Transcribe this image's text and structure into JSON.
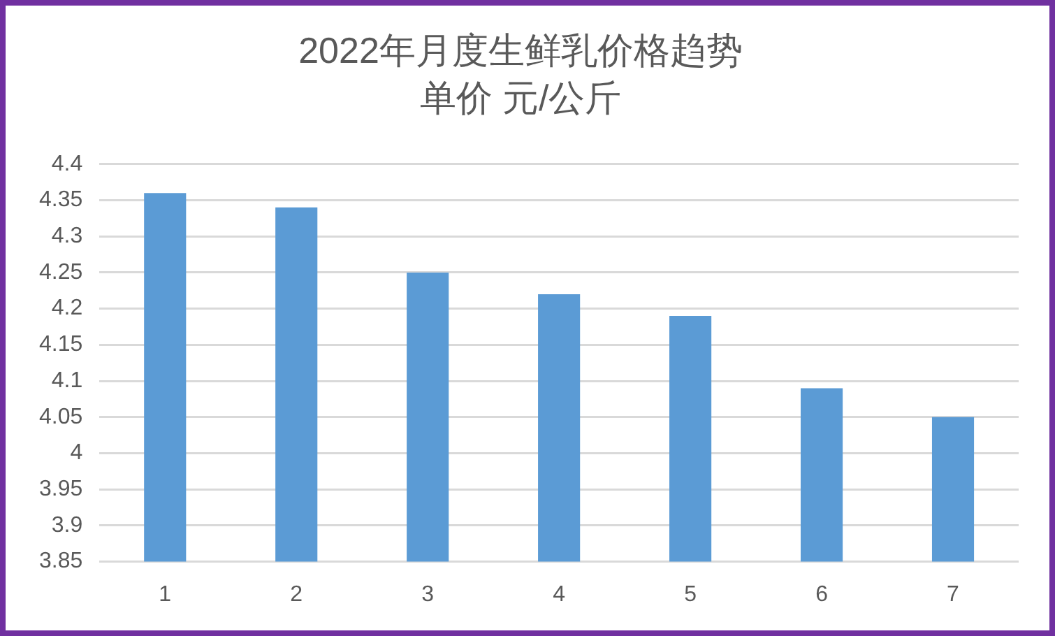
{
  "chart_data": {
    "type": "bar",
    "title": "2022年月度生鲜乳价格趋势",
    "subtitle": "单价 元/公斤",
    "categories": [
      "1",
      "2",
      "3",
      "4",
      "5",
      "6",
      "7"
    ],
    "values": [
      4.36,
      4.34,
      4.25,
      4.22,
      4.19,
      4.09,
      4.05
    ],
    "color": "#5b9bd5",
    "ylim": [
      3.85,
      4.4
    ],
    "yticks": [
      3.85,
      3.9,
      3.95,
      4,
      4.05,
      4.1,
      4.15,
      4.2,
      4.25,
      4.3,
      4.35,
      4.4
    ],
    "grid": "y"
  }
}
